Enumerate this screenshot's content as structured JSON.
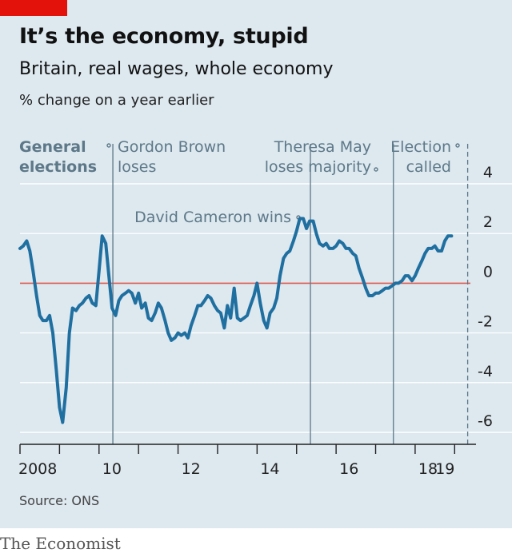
{
  "header": {
    "title": "It’s the economy, stupid",
    "subtitle": "Britain, real wages, whole economy",
    "unit": "% change on a year earlier"
  },
  "footer": {
    "source": "Source: ONS",
    "brand": "The Economist"
  },
  "colors": {
    "accent": "#e3120b",
    "line": "#1f6fa0",
    "zero": "#e15a4f",
    "grid": "#ffffff",
    "annotation": "#5d7888",
    "background": "#dde8ef"
  },
  "chart_data": {
    "type": "line",
    "x_range": [
      2008.0,
      2019.5
    ],
    "y_range": [
      -6,
      4
    ],
    "y_ticks": [
      4,
      2,
      0,
      -2,
      -4,
      -6
    ],
    "x_ticks": [
      {
        "value": 2008,
        "label": "2008"
      },
      {
        "value": 2010,
        "label": "10"
      },
      {
        "value": 2012,
        "label": "12"
      },
      {
        "value": 2014,
        "label": "14"
      },
      {
        "value": 2016,
        "label": "16"
      },
      {
        "value": 2018,
        "label": "18"
      },
      {
        "value": 2019,
        "label": "19"
      }
    ],
    "legend_label": "General elections",
    "annotations": [
      {
        "x": 2010.35,
        "label": "Gordon Brown loses",
        "label_side": "right"
      },
      {
        "x": 2015.35,
        "label": "David Cameron wins",
        "label_side": "left"
      },
      {
        "x": 2017.45,
        "label": "Theresa May loses majority",
        "label_side": "left"
      },
      {
        "x": 2019.33,
        "label": "Election called",
        "label_side": "left",
        "dashed": true
      }
    ],
    "series": [
      {
        "points": [
          [
            2008.0,
            1.4
          ],
          [
            2008.08,
            1.5
          ],
          [
            2008.17,
            1.7
          ],
          [
            2008.25,
            1.3
          ],
          [
            2008.33,
            0.5
          ],
          [
            2008.42,
            -0.5
          ],
          [
            2008.5,
            -1.3
          ],
          [
            2008.58,
            -1.5
          ],
          [
            2008.67,
            -1.5
          ],
          [
            2008.75,
            -1.3
          ],
          [
            2008.83,
            -2.0
          ],
          [
            2008.92,
            -3.5
          ],
          [
            2009.0,
            -5.0
          ],
          [
            2009.08,
            -5.6
          ],
          [
            2009.17,
            -4.2
          ],
          [
            2009.25,
            -2.0
          ],
          [
            2009.33,
            -1.0
          ],
          [
            2009.42,
            -1.1
          ],
          [
            2009.5,
            -0.9
          ],
          [
            2009.58,
            -0.8
          ],
          [
            2009.67,
            -0.6
          ],
          [
            2009.75,
            -0.5
          ],
          [
            2009.83,
            -0.8
          ],
          [
            2009.92,
            -0.9
          ],
          [
            2010.0,
            0.5
          ],
          [
            2010.08,
            1.9
          ],
          [
            2010.17,
            1.6
          ],
          [
            2010.25,
            0.3
          ],
          [
            2010.33,
            -1.0
          ],
          [
            2010.42,
            -1.3
          ],
          [
            2010.5,
            -0.7
          ],
          [
            2010.58,
            -0.5
          ],
          [
            2010.67,
            -0.4
          ],
          [
            2010.75,
            -0.3
          ],
          [
            2010.83,
            -0.4
          ],
          [
            2010.92,
            -0.8
          ],
          [
            2011.0,
            -0.4
          ],
          [
            2011.08,
            -1.0
          ],
          [
            2011.17,
            -0.8
          ],
          [
            2011.25,
            -1.4
          ],
          [
            2011.33,
            -1.5
          ],
          [
            2011.42,
            -1.2
          ],
          [
            2011.5,
            -0.8
          ],
          [
            2011.58,
            -1.0
          ],
          [
            2011.67,
            -1.5
          ],
          [
            2011.75,
            -2.0
          ],
          [
            2011.83,
            -2.3
          ],
          [
            2011.92,
            -2.2
          ],
          [
            2012.0,
            -2.0
          ],
          [
            2012.08,
            -2.1
          ],
          [
            2012.17,
            -2.0
          ],
          [
            2012.25,
            -2.2
          ],
          [
            2012.33,
            -1.7
          ],
          [
            2012.42,
            -1.3
          ],
          [
            2012.5,
            -0.9
          ],
          [
            2012.58,
            -0.9
          ],
          [
            2012.67,
            -0.7
          ],
          [
            2012.75,
            -0.5
          ],
          [
            2012.83,
            -0.6
          ],
          [
            2012.92,
            -0.9
          ],
          [
            2013.0,
            -1.1
          ],
          [
            2013.08,
            -1.2
          ],
          [
            2013.17,
            -1.8
          ],
          [
            2013.25,
            -0.9
          ],
          [
            2013.33,
            -1.4
          ],
          [
            2013.42,
            -0.2
          ],
          [
            2013.5,
            -1.4
          ],
          [
            2013.58,
            -1.5
          ],
          [
            2013.67,
            -1.4
          ],
          [
            2013.75,
            -1.3
          ],
          [
            2013.83,
            -0.9
          ],
          [
            2013.92,
            -0.5
          ],
          [
            2014.0,
            0.0
          ],
          [
            2014.08,
            -0.8
          ],
          [
            2014.17,
            -1.5
          ],
          [
            2014.25,
            -1.8
          ],
          [
            2014.33,
            -1.2
          ],
          [
            2014.42,
            -1.0
          ],
          [
            2014.5,
            -0.6
          ],
          [
            2014.58,
            0.3
          ],
          [
            2014.67,
            1.0
          ],
          [
            2014.75,
            1.2
          ],
          [
            2014.83,
            1.3
          ],
          [
            2014.92,
            1.7
          ],
          [
            2015.0,
            2.1
          ],
          [
            2015.08,
            2.6
          ],
          [
            2015.17,
            2.6
          ],
          [
            2015.25,
            2.2
          ],
          [
            2015.33,
            2.5
          ],
          [
            2015.42,
            2.5
          ],
          [
            2015.5,
            2.0
          ],
          [
            2015.58,
            1.6
          ],
          [
            2015.67,
            1.5
          ],
          [
            2015.75,
            1.6
          ],
          [
            2015.83,
            1.4
          ],
          [
            2015.92,
            1.4
          ],
          [
            2016.0,
            1.5
          ],
          [
            2016.08,
            1.7
          ],
          [
            2016.17,
            1.6
          ],
          [
            2016.25,
            1.4
          ],
          [
            2016.33,
            1.4
          ],
          [
            2016.42,
            1.2
          ],
          [
            2016.5,
            1.1
          ],
          [
            2016.58,
            0.6
          ],
          [
            2016.67,
            0.2
          ],
          [
            2016.75,
            -0.2
          ],
          [
            2016.83,
            -0.5
          ],
          [
            2016.92,
            -0.5
          ],
          [
            2017.0,
            -0.4
          ],
          [
            2017.08,
            -0.4
          ],
          [
            2017.17,
            -0.3
          ],
          [
            2017.25,
            -0.2
          ],
          [
            2017.33,
            -0.2
          ],
          [
            2017.42,
            -0.1
          ],
          [
            2017.5,
            0.0
          ],
          [
            2017.58,
            0.0
          ],
          [
            2017.67,
            0.1
          ],
          [
            2017.75,
            0.3
          ],
          [
            2017.83,
            0.3
          ],
          [
            2017.92,
            0.1
          ],
          [
            2018.0,
            0.3
          ],
          [
            2018.08,
            0.6
          ],
          [
            2018.17,
            0.9
          ],
          [
            2018.25,
            1.2
          ],
          [
            2018.33,
            1.4
          ],
          [
            2018.42,
            1.4
          ],
          [
            2018.5,
            1.5
          ],
          [
            2018.58,
            1.3
          ],
          [
            2018.67,
            1.3
          ],
          [
            2018.75,
            1.7
          ],
          [
            2018.83,
            1.9
          ],
          [
            2018.92,
            1.9
          ]
        ]
      }
    ]
  }
}
